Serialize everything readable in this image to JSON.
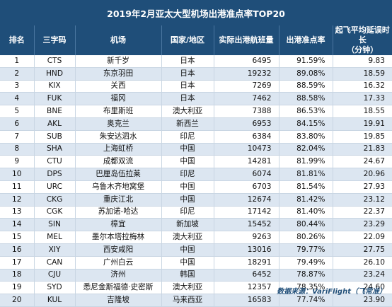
{
  "title": "2019年2月亚太大型机场出港准点率TOP20",
  "headers": {
    "rank": "排名",
    "code": "三字码",
    "airport": "机场",
    "country": "国家/地区",
    "flights": "实际出港航班量",
    "ontime": "出港准点率",
    "delay_line1": "起飞平均延误时长",
    "delay_line2": "（分钟）"
  },
  "rows": [
    {
      "rank": "1",
      "code": "CTS",
      "airport": "新千岁",
      "country": "日本",
      "flights": "6495",
      "ontime": "91.59%",
      "delay": "9.83"
    },
    {
      "rank": "2",
      "code": "HND",
      "airport": "东京羽田",
      "country": "日本",
      "flights": "19232",
      "ontime": "89.08%",
      "delay": "18.59"
    },
    {
      "rank": "3",
      "code": "KIX",
      "airport": "关西",
      "country": "日本",
      "flights": "7269",
      "ontime": "88.59%",
      "delay": "16.32"
    },
    {
      "rank": "4",
      "code": "FUK",
      "airport": "福冈",
      "country": "日本",
      "flights": "7462",
      "ontime": "88.58%",
      "delay": "17.33"
    },
    {
      "rank": "5",
      "code": "BNE",
      "airport": "布里斯班",
      "country": "澳大利亚",
      "flights": "7388",
      "ontime": "86.53%",
      "delay": "18.55"
    },
    {
      "rank": "6",
      "code": "AKL",
      "airport": "奥克兰",
      "country": "新西兰",
      "flights": "6953",
      "ontime": "84.15%",
      "delay": "19.91"
    },
    {
      "rank": "7",
      "code": "SUB",
      "airport": "朱安达泗水",
      "country": "印尼",
      "flights": "6384",
      "ontime": "83.80%",
      "delay": "19.85"
    },
    {
      "rank": "8",
      "code": "SHA",
      "airport": "上海虹桥",
      "country": "中国",
      "flights": "10473",
      "ontime": "82.04%",
      "delay": "21.83"
    },
    {
      "rank": "9",
      "code": "CTU",
      "airport": "成都双流",
      "country": "中国",
      "flights": "14281",
      "ontime": "81.99%",
      "delay": "24.67"
    },
    {
      "rank": "10",
      "code": "DPS",
      "airport": "巴厘岛伍拉莱",
      "country": "印尼",
      "flights": "6074",
      "ontime": "81.81%",
      "delay": "20.96"
    },
    {
      "rank": "11",
      "code": "URC",
      "airport": "乌鲁木齐地窝堡",
      "country": "中国",
      "flights": "6703",
      "ontime": "81.54%",
      "delay": "27.93"
    },
    {
      "rank": "12",
      "code": "CKG",
      "airport": "重庆江北",
      "country": "中国",
      "flights": "12674",
      "ontime": "81.42%",
      "delay": "23.12"
    },
    {
      "rank": "13",
      "code": "CGK",
      "airport": "苏加诺-哈达",
      "country": "印尼",
      "flights": "17142",
      "ontime": "81.40%",
      "delay": "22.37"
    },
    {
      "rank": "14",
      "code": "SIN",
      "airport": "樟宜",
      "country": "新加坡",
      "flights": "15452",
      "ontime": "80.44%",
      "delay": "23.29"
    },
    {
      "rank": "15",
      "code": "MEL",
      "airport": "墨尔本塔拉梅林",
      "country": "澳大利亚",
      "flights": "9263",
      "ontime": "80.26%",
      "delay": "22.09"
    },
    {
      "rank": "16",
      "code": "XIY",
      "airport": "西安咸阳",
      "country": "中国",
      "flights": "13016",
      "ontime": "79.77%",
      "delay": "27.75"
    },
    {
      "rank": "17",
      "code": "CAN",
      "airport": "广州白云",
      "country": "中国",
      "flights": "18291",
      "ontime": "79.49%",
      "delay": "26.10"
    },
    {
      "rank": "18",
      "code": "CJU",
      "airport": "济州",
      "country": "韩国",
      "flights": "6452",
      "ontime": "78.87%",
      "delay": "23.24"
    },
    {
      "rank": "19",
      "code": "SYD",
      "airport": "悉尼金斯福德·史密斯",
      "country": "澳大利亚",
      "flights": "12357",
      "ontime": "78.35%",
      "delay": "24.60"
    },
    {
      "rank": "20",
      "code": "KUL",
      "airport": "吉隆坡",
      "country": "马来西亚",
      "flights": "16583",
      "ontime": "77.74%",
      "delay": "23.90"
    }
  ],
  "footer": "数据来源：VariFlight（飞常准）",
  "colors": {
    "header_bg": "#1f4e79",
    "row_even": "#dce6f1",
    "row_odd": "#ffffff"
  }
}
